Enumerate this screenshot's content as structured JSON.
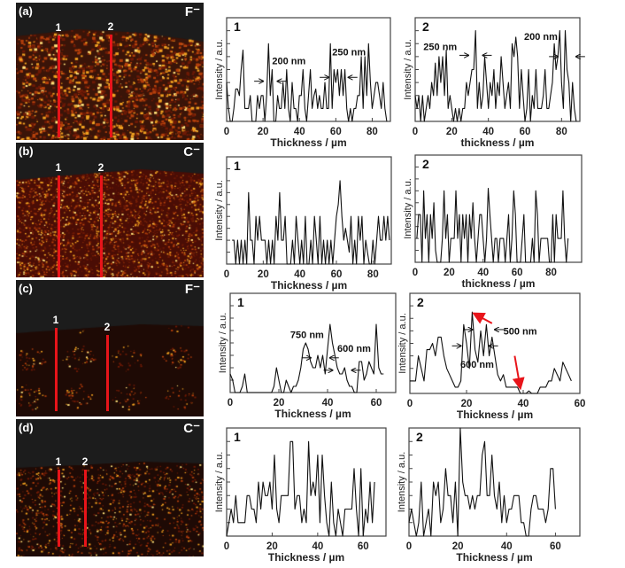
{
  "colors": {
    "trace": "#111111",
    "profile_line": "#e8141a",
    "arrow_red": "#e8141a"
  },
  "image_panels": [
    {
      "label": "(a)",
      "ion": "F⁻",
      "lines": [
        "1",
        "2"
      ],
      "style": "bright"
    },
    {
      "label": "(b)",
      "ion": "C⁻",
      "lines": [
        "1",
        "2"
      ],
      "style": "dense"
    },
    {
      "label": "(c)",
      "ion": "F⁻",
      "lines": [
        "1",
        "2"
      ],
      "style": "sparse"
    },
    {
      "label": "(d)",
      "ion": "C⁻",
      "lines": [
        "1",
        "2"
      ],
      "style": "faint"
    }
  ],
  "chart_data": [
    {
      "type": "line",
      "panel": "a",
      "title": "1",
      "xlabel": "Thickness / µm",
      "ylabel": "Intensity / a.u.",
      "xlim": [
        0,
        90
      ],
      "ylim": [
        0,
        8
      ],
      "xticks": [
        0,
        20,
        40,
        60,
        80
      ],
      "x_start": 0,
      "x_step": 1,
      "y": [
        3,
        1,
        0,
        0,
        1,
        2.5,
        2.5,
        2,
        4,
        5.5,
        1,
        1,
        1,
        2,
        0,
        0,
        0,
        2,
        1,
        2,
        2,
        0,
        2,
        6,
        2,
        4,
        0,
        0,
        2,
        1,
        1,
        3,
        1,
        4,
        1,
        0,
        3,
        1,
        1,
        0,
        2,
        2,
        4,
        1,
        0,
        2,
        4,
        1,
        2,
        2.5,
        1,
        2,
        1,
        1,
        3,
        1,
        1,
        6,
        1,
        4,
        3,
        4,
        2,
        4,
        2,
        4,
        1,
        0,
        1,
        0,
        1,
        1,
        2,
        2,
        5,
        1,
        5,
        2,
        6,
        3,
        1,
        2,
        3,
        3,
        2,
        1,
        3,
        1,
        0
      ],
      "annotations": [
        {
          "text": "200 nm",
          "x": 25,
          "y": 4.4,
          "marker": [
            20,
            28,
            3.1
          ]
        },
        {
          "text": "250 nm",
          "x": 58,
          "y": 5.1,
          "marker": [
            56,
            67,
            3.4
          ]
        }
      ]
    },
    {
      "type": "line",
      "panel": "a",
      "title": "2",
      "xlabel": "thickness / µm",
      "ylabel": "Intensity / a.u.",
      "xlim": [
        0,
        90
      ],
      "ylim": [
        0,
        8
      ],
      "xticks": [
        0,
        20,
        40,
        60,
        80
      ],
      "x_start": 0,
      "x_step": 1,
      "y": [
        2,
        1,
        2,
        0,
        2,
        0,
        1,
        2,
        1,
        3,
        2,
        4.5,
        2,
        5,
        3,
        5,
        2,
        5.5,
        1,
        2,
        1,
        0,
        1,
        0,
        1,
        0,
        1,
        1,
        3,
        2,
        3,
        4,
        4,
        7,
        1,
        3,
        1,
        2,
        5,
        3,
        1,
        3,
        2,
        4,
        1,
        3,
        2,
        5,
        3,
        1,
        2,
        3,
        1,
        6,
        5,
        6.5,
        5,
        1,
        4,
        2,
        0,
        1,
        4,
        0,
        2,
        1,
        4,
        1,
        1,
        1,
        2,
        4,
        1,
        1,
        2,
        3,
        6,
        4,
        5,
        7,
        3,
        1,
        7,
        4,
        3,
        0,
        3,
        1,
        0
      ],
      "annotations": [
        {
          "text": "250 nm",
          "x": 4.5,
          "y": 5.5,
          "marker": [
            29,
            37,
            5.1
          ]
        },
        {
          "text": "200 nm",
          "x": 59.5,
          "y": 6.3,
          "marker": [
            78,
            88,
            5.0
          ]
        }
      ]
    },
    {
      "type": "line",
      "panel": "b",
      "title": "1",
      "xlabel": "Thickness / µm",
      "ylabel": "Intensity / a.u.",
      "xlim": [
        0,
        90
      ],
      "ylim": [
        0,
        9
      ],
      "xticks": [
        0,
        20,
        40,
        60,
        80
      ],
      "x_start": 3,
      "x_step": 1,
      "y": [
        2,
        2,
        0,
        2,
        0,
        2,
        0,
        2,
        0,
        6,
        2,
        2,
        0,
        4,
        2,
        4,
        2,
        2,
        2,
        0,
        2,
        0,
        2,
        0,
        4,
        2,
        6,
        2,
        2,
        4,
        0,
        0,
        0,
        2,
        0,
        4,
        2,
        0,
        2,
        0,
        4,
        0,
        0,
        2,
        0,
        4,
        2,
        0,
        4,
        0,
        2,
        0,
        2,
        0,
        2,
        0,
        2,
        4,
        5,
        7,
        4,
        2,
        3,
        2,
        1,
        4,
        0,
        2,
        0,
        4,
        2,
        4,
        0,
        2,
        1,
        0,
        0,
        2,
        0,
        2,
        4,
        2,
        2,
        4,
        2,
        4,
        2
      ],
      "annotations": []
    },
    {
      "type": "line",
      "panel": "b",
      "title": "2",
      "xlabel": "thickness / µm",
      "ylabel": "Intensity / a.u.",
      "xlim": [
        0,
        98
      ],
      "ylim": [
        0,
        9
      ],
      "xticks": [
        0,
        20,
        40,
        60,
        80
      ],
      "x_start": 1,
      "x_step": 1,
      "y": [
        2,
        4,
        4,
        0,
        6,
        2,
        4,
        0,
        4,
        2,
        5,
        1,
        0,
        0,
        0,
        2,
        6,
        2,
        4,
        0,
        2,
        2,
        2,
        6,
        2,
        4,
        0,
        4,
        2,
        4,
        0,
        4,
        2,
        5,
        2,
        0,
        2,
        4,
        4,
        2,
        0,
        2,
        6.2,
        4,
        2,
        0,
        2,
        2,
        0,
        2,
        2,
        2,
        0,
        2,
        4,
        0,
        2,
        6,
        4,
        0,
        0,
        0,
        2,
        4,
        0,
        0,
        0,
        0,
        2,
        0,
        6,
        4,
        0,
        2,
        2,
        2,
        2,
        2,
        0,
        0,
        4,
        0,
        4,
        2,
        2,
        2,
        6,
        2,
        0,
        2
      ],
      "annotations": []
    },
    {
      "type": "line",
      "panel": "c",
      "title": "1",
      "xlabel": "Thickness / µm",
      "ylabel": "Intensity / a.u.",
      "xlim": [
        0,
        68
      ],
      "ylim": [
        0,
        8
      ],
      "xticks": [
        0,
        20,
        40,
        60
      ],
      "x_start": 0,
      "x_step": 1,
      "y": [
        1.5,
        1,
        0,
        0,
        0,
        0.5,
        1.5,
        0,
        0,
        0,
        0,
        0,
        0,
        0,
        0,
        0,
        0,
        0,
        0.5,
        2,
        1,
        0,
        0,
        1,
        0.5,
        0,
        0.5,
        0.5,
        1,
        2,
        3.5,
        4,
        3.5,
        2.5,
        2,
        2,
        3,
        2,
        3,
        1.5,
        3.5,
        5.5,
        4,
        3,
        2,
        1.5,
        1.5,
        2,
        1,
        0.5,
        0.5,
        0,
        0,
        2.5,
        2.5,
        1,
        1.5,
        2.5,
        2,
        1.5,
        5.5,
        2,
        1.5,
        1.5
      ],
      "annotations": [
        {
          "text": "750 nm",
          "x": 24.7,
          "y": 4.4,
          "marker": [
            33,
            41,
            2.8
          ]
        },
        {
          "text": "600 nm",
          "x": 44,
          "y": 3.3,
          "marker": [
            42,
            50,
            1.8
          ]
        }
      ]
    },
    {
      "type": "line",
      "panel": "c",
      "title": "2",
      "xlabel": "Thickness / µm",
      "ylabel": "Intensity / a.u.",
      "xlim": [
        0,
        60
      ],
      "ylim": [
        0,
        8
      ],
      "xticks": [
        0,
        20,
        40,
        60
      ],
      "x_start": 0,
      "x_step": 1,
      "y": [
        1,
        1,
        1,
        3,
        2,
        1,
        3.5,
        3.5,
        4,
        3,
        4.5,
        4.5,
        3,
        2,
        1.5,
        1,
        0.5,
        0.5,
        1,
        5.5,
        4,
        2,
        6.5,
        3.5,
        2.5,
        5,
        3,
        5.5,
        3,
        4.5,
        3,
        1.5,
        1,
        1.5,
        0.5,
        0.5,
        0.5,
        0.5,
        0.5,
        0,
        0,
        0,
        0.2,
        0,
        0,
        0,
        0.5,
        0.5,
        0.5,
        1,
        1,
        2,
        1.5,
        1,
        2.5,
        2,
        1.5,
        1
      ],
      "annotations": [
        {
          "text": "500 nm",
          "x": 33,
          "y": 4.7,
          "marker": [
            22,
            30,
            5.1
          ]
        },
        {
          "text": "600 nm",
          "x": 17.8,
          "y": 2.05,
          "marker": [
            18,
            28,
            3.8
          ]
        }
      ],
      "red_arrows": [
        {
          "from": [
            29,
            5.6
          ],
          "to": [
            22.5,
            6.4
          ]
        },
        {
          "from": [
            37,
            3
          ],
          "to": [
            39,
            0.4
          ]
        }
      ]
    },
    {
      "type": "line",
      "panel": "d",
      "title": "1",
      "xlabel": "Thickness / µm",
      "ylabel": "Intensity / a.u.",
      "xlim": [
        0,
        70
      ],
      "ylim": [
        0,
        8
      ],
      "xticks": [
        0,
        20,
        40,
        60
      ],
      "x_start": 0,
      "x_step": 1,
      "y": [
        0,
        1,
        2,
        1,
        3,
        1,
        1,
        1,
        1,
        3,
        3,
        2,
        2,
        1,
        4,
        2,
        4,
        3,
        3,
        4,
        2,
        6,
        2,
        1,
        3,
        3,
        3,
        3,
        7,
        7,
        2,
        3,
        3,
        1,
        2,
        1,
        7,
        3,
        4,
        3,
        6,
        1,
        6,
        3,
        1,
        0,
        4,
        1,
        0,
        2,
        1,
        0,
        2,
        2,
        2,
        2,
        5,
        2,
        0,
        5,
        0,
        2,
        1,
        4,
        1,
        4
      ],
      "annotations": []
    },
    {
      "type": "line",
      "panel": "d",
      "title": "2",
      "xlabel": "Thickness / µm",
      "ylabel": "Intensity / a.u.",
      "xlim": [
        0,
        70
      ],
      "ylim": [
        0,
        8
      ],
      "xticks": [
        0,
        20,
        40,
        60
      ],
      "x_start": 0,
      "x_step": 1,
      "y": [
        1,
        2,
        1,
        0,
        1,
        4,
        0,
        1,
        2,
        0,
        4,
        3,
        4,
        1,
        2,
        5,
        3,
        3,
        1,
        4,
        0,
        8,
        4,
        3,
        3,
        2,
        3,
        2,
        3,
        3,
        6,
        7,
        3,
        3,
        6,
        3,
        2,
        4,
        1,
        3,
        1,
        2,
        2,
        3,
        3,
        3,
        1,
        1,
        0,
        0,
        2,
        3,
        3,
        2,
        2,
        2,
        1,
        2,
        5,
        5,
        2
      ],
      "annotations": []
    }
  ]
}
